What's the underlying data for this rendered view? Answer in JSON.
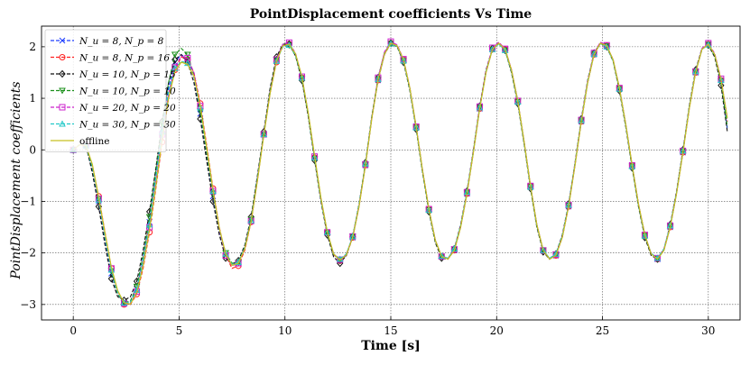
{
  "chart_data": {
    "type": "line",
    "title": "PointDisplacement coefficients Vs Time",
    "xlabel": "Time [s]",
    "ylabel": "PointDisplacement coefficients",
    "xlim": [
      -1.5,
      31.5
    ],
    "ylim": [
      -3.3,
      2.4
    ],
    "xticks": [
      "0",
      "5",
      "10",
      "15",
      "20",
      "25",
      "30"
    ],
    "yticks": [
      "−3",
      "−2",
      "−1",
      "0",
      "1",
      "2"
    ],
    "grid": true,
    "legend_position": "top-left",
    "x_step": 0.3,
    "series": [
      {
        "name": "N_u = 8, N_p = 8",
        "label": "N_u = 8, N_p = 8",
        "color": "#1f3fff",
        "marker": "x",
        "dashed": true,
        "values": [
          0.0,
          0.1,
          0.08,
          -0.4,
          -1.0,
          -1.75,
          -2.4,
          -2.8,
          -2.98,
          -2.95,
          -2.7,
          -2.1,
          -1.4,
          -0.5,
          0.4,
          1.2,
          1.7,
          1.85,
          1.75,
          1.4,
          0.7,
          -0.1,
          -0.9,
          -1.6,
          -2.05,
          -2.23,
          -2.2,
          -1.9,
          -1.35,
          -0.55,
          0.3,
          1.15,
          1.75,
          2.02,
          2.05,
          1.85,
          1.4,
          0.7,
          -0.15,
          -0.95,
          -1.6,
          -2.03,
          -2.15,
          -2.05,
          -1.7,
          -1.1,
          -0.3,
          0.6,
          1.35,
          1.85,
          2.07,
          2.02,
          1.75,
          1.2,
          0.45,
          -0.4,
          -1.15,
          -1.75,
          -2.07,
          -2.12,
          -1.95,
          -1.5,
          -0.85,
          -0.05,
          0.8,
          1.5,
          1.95,
          2.07,
          1.95,
          1.55,
          0.95,
          0.15,
          -0.7,
          -1.45,
          -1.95,
          -2.12,
          -2.05,
          -1.7,
          -1.1,
          -0.3,
          0.55,
          1.3,
          1.85,
          2.07,
          2.02,
          1.75,
          1.2,
          0.5,
          -0.3,
          -1.05,
          -1.65,
          -2.02,
          -2.12,
          -1.95,
          -1.5,
          -0.85,
          -0.05,
          0.8,
          1.5,
          1.95,
          2.05,
          1.85,
          1.35,
          0.4
        ]
      },
      {
        "name": "N_u = 8, N_p = 16",
        "label": "N_u = 8, N_p = 16",
        "color": "#ff2020",
        "marker": "o",
        "dashed": true,
        "values": [
          0.0,
          0.1,
          0.07,
          -0.3,
          -0.9,
          -1.6,
          -2.3,
          -2.75,
          -3.0,
          -3.0,
          -2.8,
          -2.3,
          -1.6,
          -0.75,
          0.15,
          1.0,
          1.55,
          1.8,
          1.75,
          1.5,
          0.9,
          0.1,
          -0.75,
          -1.5,
          -2.05,
          -2.3,
          -2.25,
          -1.95,
          -1.4,
          -0.6,
          0.3,
          1.1,
          1.7,
          2.02,
          2.05,
          1.85,
          1.4,
          0.7,
          -0.15,
          -0.95,
          -1.6,
          -2.03,
          -2.15,
          -2.05,
          -1.7,
          -1.1,
          -0.3,
          0.6,
          1.35,
          1.85,
          2.07,
          2.02,
          1.75,
          1.2,
          0.45,
          -0.4,
          -1.15,
          -1.75,
          -2.07,
          -2.12,
          -1.95,
          -1.5,
          -0.85,
          -0.05,
          0.8,
          1.5,
          1.95,
          2.07,
          1.95,
          1.55,
          0.95,
          0.15,
          -0.7,
          -1.45,
          -1.95,
          -2.12,
          -2.05,
          -1.7,
          -1.1,
          -0.3,
          0.55,
          1.3,
          1.85,
          2.07,
          2.02,
          1.75,
          1.2,
          0.5,
          -0.3,
          -1.05,
          -1.65,
          -2.02,
          -2.12,
          -1.95,
          -1.5,
          -0.85,
          -0.05,
          0.8,
          1.5,
          1.95,
          2.05,
          1.85,
          1.35,
          0.55
        ]
      },
      {
        "name": "N_u = 10, N_p = 15",
        "label": "N_u = 10, N_p = 15",
        "color": "#111111",
        "marker": "diamond",
        "dashed": true,
        "values": [
          0.0,
          0.1,
          0.09,
          -0.45,
          -1.1,
          -1.85,
          -2.5,
          -2.85,
          -2.92,
          -2.85,
          -2.55,
          -1.95,
          -1.2,
          -0.35,
          0.55,
          1.3,
          1.75,
          1.85,
          1.7,
          1.3,
          0.6,
          -0.2,
          -1.0,
          -1.65,
          -2.1,
          -2.22,
          -2.15,
          -1.85,
          -1.3,
          -0.5,
          0.35,
          1.2,
          1.8,
          2.05,
          2.05,
          1.82,
          1.35,
          0.65,
          -0.2,
          -1.0,
          -1.65,
          -2.08,
          -2.2,
          -2.05,
          -1.68,
          -1.05,
          -0.25,
          0.65,
          1.4,
          1.88,
          2.07,
          2.0,
          1.7,
          1.15,
          0.4,
          -0.45,
          -1.2,
          -1.8,
          -2.1,
          -2.12,
          -1.92,
          -1.45,
          -0.8,
          0.0,
          0.85,
          1.55,
          1.97,
          2.07,
          1.93,
          1.5,
          0.9,
          0.1,
          -0.75,
          -1.5,
          -1.98,
          -2.12,
          -2.02,
          -1.65,
          -1.05,
          -0.25,
          0.6,
          1.35,
          1.88,
          2.07,
          2.0,
          1.72,
          1.15,
          0.45,
          -0.35,
          -1.1,
          -1.7,
          -2.05,
          -2.12,
          -1.93,
          -1.45,
          -0.8,
          0.0,
          0.85,
          1.55,
          1.97,
          2.03,
          1.8,
          1.25,
          0.35
        ]
      },
      {
        "name": "N_u = 10, N_p = 10",
        "label": "N_u = 10, N_p = 10",
        "color": "#1a8f1a",
        "marker": "tri_down",
        "dashed": true,
        "values": [
          0.0,
          0.1,
          0.08,
          -0.35,
          -0.95,
          -1.7,
          -2.35,
          -2.8,
          -2.97,
          -2.93,
          -2.65,
          -2.05,
          -1.3,
          -0.4,
          0.5,
          1.3,
          1.85,
          1.97,
          1.85,
          1.45,
          0.75,
          -0.05,
          -0.85,
          -1.55,
          -2.0,
          -2.2,
          -2.18,
          -1.9,
          -1.35,
          -0.55,
          0.3,
          1.15,
          1.75,
          2.02,
          2.03,
          1.83,
          1.38,
          0.68,
          -0.17,
          -0.97,
          -1.62,
          -2.03,
          -2.13,
          -2.03,
          -1.68,
          -1.08,
          -0.28,
          0.62,
          1.37,
          1.86,
          2.06,
          2.01,
          1.73,
          1.18,
          0.43,
          -0.42,
          -1.17,
          -1.77,
          -2.07,
          -2.11,
          -1.93,
          -1.48,
          -0.83,
          -0.03,
          0.82,
          1.52,
          1.95,
          2.06,
          1.93,
          1.53,
          0.93,
          0.13,
          -0.72,
          -1.47,
          -1.95,
          -2.11,
          -2.03,
          -1.68,
          -1.08,
          -0.28,
          0.57,
          1.32,
          1.86,
          2.06,
          2.01,
          1.73,
          1.18,
          0.48,
          -0.32,
          -1.07,
          -1.67,
          -2.02,
          -2.11,
          -1.93,
          -1.48,
          -0.83,
          -0.03,
          0.82,
          1.52,
          1.95,
          2.04,
          1.83,
          1.33,
          0.45
        ]
      },
      {
        "name": "N_u = 20, N_p = 20",
        "label": "N_u = 20, N_p = 20",
        "color": "#cc22cc",
        "marker": "square",
        "dashed": true,
        "values": [
          0.0,
          0.1,
          0.09,
          -0.3,
          -0.95,
          -1.65,
          -2.3,
          -2.75,
          -2.98,
          -2.98,
          -2.75,
          -2.2,
          -1.5,
          -0.6,
          0.3,
          1.1,
          1.6,
          1.82,
          1.78,
          1.5,
          0.85,
          0.05,
          -0.8,
          -1.55,
          -2.05,
          -2.25,
          -2.2,
          -1.92,
          -1.38,
          -0.58,
          0.3,
          1.12,
          1.75,
          2.05,
          2.08,
          1.87,
          1.42,
          0.72,
          -0.13,
          -0.95,
          -1.6,
          -2.02,
          -2.13,
          -2.03,
          -1.68,
          -1.08,
          -0.28,
          0.62,
          1.4,
          1.9,
          2.1,
          2.04,
          1.76,
          1.2,
          0.45,
          -0.4,
          -1.15,
          -1.75,
          -2.07,
          -2.11,
          -1.93,
          -1.48,
          -0.82,
          -0.02,
          0.84,
          1.54,
          1.98,
          2.09,
          1.96,
          1.56,
          0.95,
          0.15,
          -0.7,
          -1.45,
          -1.95,
          -2.11,
          -2.03,
          -1.68,
          -1.07,
          -0.27,
          0.58,
          1.33,
          1.88,
          2.09,
          2.03,
          1.75,
          1.2,
          0.5,
          -0.3,
          -1.05,
          -1.65,
          -2.01,
          -2.1,
          -1.92,
          -1.47,
          -0.82,
          -0.02,
          0.82,
          1.52,
          1.97,
          2.07,
          1.87,
          1.38,
          0.62
        ]
      },
      {
        "name": "N_u = 30, N_p = 30",
        "label": "N_u = 30, N_p = 30",
        "color": "#22c8c8",
        "marker": "triangle",
        "dashed": true,
        "values": [
          0.0,
          0.1,
          0.08,
          -0.32,
          -0.97,
          -1.68,
          -2.33,
          -2.77,
          -2.97,
          -2.96,
          -2.72,
          -2.15,
          -1.45,
          -0.55,
          0.35,
          1.12,
          1.58,
          1.72,
          1.68,
          1.42,
          0.82,
          0.03,
          -0.8,
          -1.53,
          -2.02,
          -2.22,
          -2.18,
          -1.9,
          -1.37,
          -0.57,
          0.3,
          1.1,
          1.72,
          2.0,
          2.03,
          1.84,
          1.4,
          0.7,
          -0.15,
          -0.95,
          -1.6,
          -2.02,
          -2.12,
          -2.02,
          -1.68,
          -1.07,
          -0.27,
          0.62,
          1.37,
          1.86,
          2.06,
          2.01,
          1.73,
          1.18,
          0.43,
          -0.42,
          -1.17,
          -1.76,
          -2.06,
          -2.1,
          -1.92,
          -1.47,
          -0.82,
          -0.02,
          0.82,
          1.52,
          1.95,
          2.05,
          1.93,
          1.53,
          0.93,
          0.13,
          -0.72,
          -1.47,
          -1.95,
          -2.1,
          -2.02,
          -1.67,
          -1.07,
          -0.27,
          0.57,
          1.32,
          1.86,
          2.06,
          2.0,
          1.73,
          1.18,
          0.48,
          -0.32,
          -1.07,
          -1.67,
          -2.01,
          -2.1,
          -1.92,
          -1.47,
          -0.82,
          -0.02,
          0.82,
          1.52,
          1.95,
          2.04,
          1.84,
          1.35,
          0.58
        ]
      },
      {
        "name": "offline",
        "label": "offline",
        "color": "#c8c020",
        "marker": "none",
        "dashed": false,
        "values": [
          0.0,
          0.1,
          0.08,
          -0.28,
          -0.92,
          -1.62,
          -2.28,
          -2.73,
          -2.97,
          -2.99,
          -2.77,
          -2.25,
          -1.55,
          -0.7,
          0.2,
          1.0,
          1.52,
          1.7,
          1.66,
          1.43,
          0.85,
          0.05,
          -0.78,
          -1.52,
          -2.02,
          -2.24,
          -2.2,
          -1.92,
          -1.39,
          -0.6,
          0.28,
          1.1,
          1.72,
          2.02,
          2.05,
          1.86,
          1.42,
          0.72,
          -0.12,
          -0.93,
          -1.59,
          -2.02,
          -2.14,
          -2.04,
          -1.7,
          -1.1,
          -0.3,
          0.6,
          1.36,
          1.86,
          2.07,
          2.02,
          1.75,
          1.2,
          0.45,
          -0.4,
          -1.15,
          -1.75,
          -2.07,
          -2.12,
          -1.95,
          -1.5,
          -0.85,
          -0.05,
          0.8,
          1.5,
          1.95,
          2.07,
          1.95,
          1.55,
          0.95,
          0.15,
          -0.7,
          -1.45,
          -1.95,
          -2.12,
          -2.05,
          -1.7,
          -1.1,
          -0.3,
          0.55,
          1.3,
          1.85,
          2.07,
          2.02,
          1.75,
          1.2,
          0.5,
          -0.3,
          -1.05,
          -1.65,
          -2.02,
          -2.12,
          -1.95,
          -1.5,
          -0.85,
          -0.05,
          0.8,
          1.5,
          1.95,
          2.05,
          1.85,
          1.36,
          0.62
        ]
      }
    ]
  }
}
